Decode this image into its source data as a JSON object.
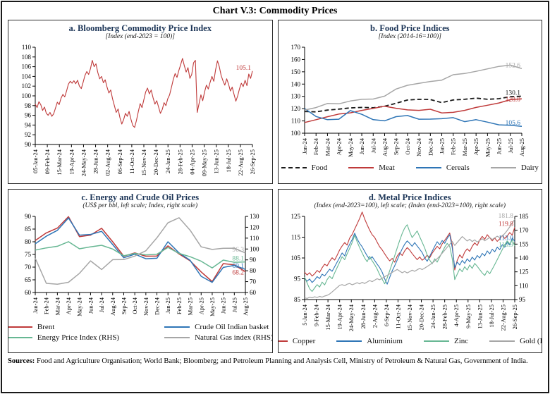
{
  "title": "Chart V.3: Commodity Prices",
  "sources": {
    "label": "Sources:",
    "text": " Food and Agriculture Organisation; World Bank; Bloomberg; and Petroleum Planning and Analysis Cell, Ministry of Petroleum & Natural Gas, Government of India."
  },
  "colors": {
    "red": "#bf3a3a",
    "blue": "#2e75b6",
    "green": "#67b793",
    "gray": "#a6a6a6",
    "black": "#1a1a1a"
  },
  "chart_data": [
    {
      "type": "line",
      "title": "a. Bloomberg Commodity Price Index",
      "subtitle": "[Index (end-2023 = 100)]",
      "left_axis": {
        "min": 90,
        "max": 110,
        "step": 2
      },
      "right_axis": null,
      "x_label_space": 52,
      "x_labels": [
        "05-Jan-24",
        "09-Feb-24",
        "15-Mar-24",
        "19-Apr-24",
        "24-May-24",
        "28-Jun-24",
        "02-Aug-24",
        "06-Sep-24",
        "11-Oct-24",
        "15-Nov-24",
        "20-Dec-24",
        "24-Jan-25",
        "28-Feb-25",
        "04-Apr-25",
        "09-May-25",
        "13-Jun-25",
        "18-Jul-25",
        "22-Aug-25",
        "26-Sep-25"
      ],
      "legend": false,
      "series": [
        {
          "name": "Bloomberg Commodity Price Index",
          "color": "#bf3a3a",
          "axis": "left",
          "width": 1.1,
          "end_label": "105.1",
          "values": [
            98.3,
            97.6,
            98.8,
            98.2,
            97.0,
            97.7,
            96.4,
            96.0,
            96.6,
            95.8,
            96.3,
            97.5,
            98.7,
            98.2,
            99.5,
            100.3,
            99.8,
            101.0,
            102.4,
            103.0,
            102.6,
            103.1,
            102.5,
            103.2,
            102.0,
            101.5,
            102.8,
            104.2,
            105.0,
            104.4,
            105.6,
            107.3,
            106.0,
            106.6,
            104.8,
            103.5,
            104.0,
            102.7,
            103.3,
            101.8,
            100.6,
            101.2,
            99.4,
            98.0,
            96.6,
            97.3,
            95.5,
            94.2,
            95.1,
            96.4,
            95.8,
            96.8,
            95.2,
            93.9,
            93.5,
            95.0,
            96.8,
            98.4,
            97.6,
            99.2,
            100.8,
            101.6,
            100.4,
            101.2,
            99.6,
            98.3,
            99.0,
            97.7,
            96.4,
            97.2,
            98.6,
            98.0,
            99.4,
            100.2,
            101.8,
            103.4,
            104.6,
            103.8,
            105.2,
            106.4,
            107.7,
            106.2,
            104.9,
            105.8,
            103.6,
            104.4,
            106.8,
            107.3,
            96.6,
            98.4,
            100.2,
            99.0,
            100.8,
            102.2,
            101.4,
            102.8,
            104.0,
            103.0,
            105.4,
            107.2,
            106.0,
            104.2,
            103.1,
            102.2,
            103.5,
            102.4,
            101.0,
            101.8,
            100.3,
            98.9,
            100.0,
            101.5,
            102.6,
            101.9,
            103.2,
            102.1,
            104.5,
            103.6,
            105.1
          ]
        }
      ]
    },
    {
      "type": "line",
      "title": "b. Food Price Indices",
      "subtitle": "[Index (2014-16=100)]",
      "left_axis": {
        "min": 100,
        "max": 170,
        "step": 10
      },
      "right_axis": null,
      "x_label_space": 42,
      "x_labels": [
        "Jan-24",
        "Feb-24",
        "Mar-24",
        "Apr-24",
        "May-24",
        "Jun-24",
        "Jul-24",
        "Aug-24",
        "Sep-24",
        "Oct-24",
        "Nov-24",
        "Dec-24",
        "Jan-25",
        "Feb-25",
        "Mar-25",
        "Apr-25",
        "May-25",
        "Jun-25",
        "Jul-25",
        "Aug-25"
      ],
      "legend": true,
      "series": [
        {
          "name": "Food",
          "color": "#1a1a1a",
          "axis": "left",
          "width": 1.8,
          "dash": "6,3.5",
          "end_label": "130.1",
          "values": [
            117.7,
            117.4,
            118.8,
            119.6,
            120.6,
            121.0,
            120.7,
            121.9,
            124.4,
            127.0,
            127.6,
            127.4,
            124.9,
            127.1,
            127.6,
            128.6,
            127.6,
            128.1,
            129.7,
            130.1
          ]
        },
        {
          "name": "Meat",
          "color": "#bf3a3a",
          "axis": "left",
          "width": 1.5,
          "end_label": "128.0",
          "values": [
            108.7,
            111.0,
            113.4,
            115.6,
            116.6,
            118.6,
            120.2,
            122.0,
            120.3,
            119.0,
            118.6,
            119.5,
            116.5,
            117.0,
            118.6,
            121.0,
            122.8,
            124.6,
            127.3,
            128.0
          ]
        },
        {
          "name": "Cereals",
          "color": "#2e75b6",
          "axis": "left",
          "width": 1.5,
          "end_label": "105.6",
          "values": [
            120.1,
            113.6,
            111.0,
            111.4,
            118.4,
            115.4,
            111.0,
            110.1,
            113.5,
            114.4,
            111.4,
            111.5,
            111.8,
            112.7,
            109.4,
            111.0,
            109.0,
            106.8,
            106.4,
            105.6
          ]
        },
        {
          "name": "Dairy",
          "color": "#a6a6a6",
          "axis": "left",
          "width": 1.5,
          "end_label": "152.6",
          "values": [
            118.9,
            120.9,
            124.2,
            123.9,
            126.2,
            127.6,
            127.8,
            130.2,
            136.0,
            139.0,
            140.6,
            142.1,
            143.2,
            147.6,
            148.6,
            150.4,
            152.4,
            154.4,
            155.4,
            152.6
          ]
        }
      ]
    },
    {
      "type": "line",
      "title": "c. Energy and Crude Oil Prices",
      "subtitle": "(US$ per bbl, left scale; Index, right scale)",
      "left_axis": {
        "min": 60,
        "max": 90,
        "step": 5
      },
      "right_axis": {
        "min": 60,
        "max": 130,
        "step": 10
      },
      "x_label_space": 42,
      "x_labels": [
        "Jan-24",
        "Feb-24",
        "Mar-24",
        "Apr-24",
        "May-24",
        "Jun-24",
        "Jul-24",
        "Aug-24",
        "Sep-24",
        "Oct-24",
        "Nov-24",
        "Dec-24",
        "Jan-25",
        "Feb-25",
        "Mar-25",
        "Apr-25",
        "May-25",
        "Jun-25",
        "Jul-25",
        "Aug-25"
      ],
      "legend": true,
      "legend_two_col": true,
      "series": [
        {
          "name": "Brent",
          "color": "#bf3a3a",
          "axis": "left",
          "width": 1.5,
          "end_label": "68.2",
          "values": [
            80.5,
            83.5,
            85.4,
            89.9,
            82.0,
            82.6,
            85.3,
            80.0,
            74.3,
            75.6,
            74.3,
            74.4,
            78.4,
            75.2,
            72.5,
            68.1,
            64.3,
            71.4,
            70.9,
            68.2
          ]
        },
        {
          "name": "Crude Oil Indian basket",
          "color": "#2e75b6",
          "axis": "left",
          "width": 1.5,
          "end_label": "69.1",
          "values": [
            79.2,
            82.2,
            84.5,
            89.4,
            82.6,
            82.9,
            84.1,
            78.9,
            73.7,
            75.1,
            73.3,
            73.5,
            80.0,
            75.6,
            72.7,
            66.4,
            64.0,
            69.9,
            70.7,
            69.1
          ]
        },
        {
          "name": "Energy Price Index (RHS)",
          "color": "#67b793",
          "axis": "right",
          "width": 1.5,
          "end_label": "88.1",
          "values": [
            99.0,
            101.0,
            102.5,
            106.7,
            100.2,
            102.0,
            103.4,
            100.0,
            93.8,
            95.9,
            94.6,
            95.2,
            101.4,
            96.0,
            92.9,
            88.8,
            82.6,
            89.8,
            87.8,
            88.1
          ]
        },
        {
          "name": "Natural Gas index (RHS)",
          "color": "#a6a6a6",
          "axis": "right",
          "width": 1.5,
          "end_label": "96.3",
          "values": [
            91.5,
            68.4,
            67.6,
            69.4,
            77.6,
            89.1,
            81.1,
            90.2,
            90.3,
            93.5,
            98.4,
            110.3,
            124.1,
            128.8,
            117.3,
            102.0,
            99.6,
            100.7,
            100.8,
            96.3
          ]
        }
      ]
    },
    {
      "type": "line",
      "title": "d. Metal Price Indices",
      "subtitle": "(Index (end-2023=100), left scale; (Index (end-2023=100), right scale)",
      "left_axis": {
        "min": 85,
        "max": 125,
        "step": 10
      },
      "right_axis": {
        "min": 95,
        "max": 185,
        "step": 15
      },
      "x_label_space": 52,
      "x_labels": [
        "5-Jan-24",
        "9-Feb-24",
        "15-Mar-24",
        "19-Apr-24",
        "24-May-24",
        "28-Jun-24",
        "2-Aug-24",
        "6-Sep-24",
        "11-Oct-24",
        "15-Nov-24",
        "20-Dec-24",
        "24-Jan-25",
        "28-Feb-25",
        "4-Apr-25",
        "9-May-25",
        "13-Jun-25",
        "18-Jul-25",
        "22-Aug-25",
        "26-Sep-25"
      ],
      "legend": true,
      "series": [
        {
          "name": "Copper",
          "color": "#bf3a3a",
          "axis": "left",
          "width": 1.1,
          "end_label": "119.8",
          "values": [
            98.2,
            96.8,
            97.9,
            96.3,
            97.4,
            99.0,
            98.1,
            100.3,
            102.0,
            101.2,
            103.4,
            105.1,
            104.0,
            106.3,
            108.9,
            110.8,
            112.4,
            111.2,
            114.6,
            116.3,
            118.9,
            121.4,
            124.0,
            127.1,
            123.8,
            121.0,
            118.4,
            116.2,
            114.9,
            112.6,
            110.4,
            108.9,
            107.0,
            105.2,
            103.6,
            104.8,
            103.0,
            105.9,
            107.5,
            106.2,
            108.4,
            110.0,
            108.8,
            107.1,
            105.6,
            104.2,
            105.5,
            103.9,
            104.8,
            106.4,
            105.1,
            107.3,
            109.0,
            110.6,
            109.4,
            111.8,
            113.5,
            115.2,
            117.0,
            111.5,
            99.2,
            103.8,
            106.5,
            105.0,
            107.8,
            109.4,
            108.2,
            110.6,
            112.3,
            111.0,
            113.6,
            115.4,
            114.0,
            116.2,
            114.8,
            113.2,
            114.6,
            113.0,
            114.2,
            115.8,
            114.4,
            115.6,
            117.2,
            116.0,
            119.8
          ]
        },
        {
          "name": "Aluminium",
          "color": "#2e75b6",
          "axis": "left",
          "width": 1.1,
          "end_label": "113.0",
          "values": [
            95.3,
            93.8,
            94.9,
            93.2,
            94.4,
            96.0,
            95.1,
            97.2,
            96.4,
            98.0,
            99.6,
            98.6,
            100.8,
            103.0,
            105.2,
            107.4,
            106.0,
            109.2,
            111.6,
            113.8,
            116.9,
            114.2,
            112.0,
            110.4,
            108.2,
            106.0,
            104.4,
            105.6,
            103.8,
            102.0,
            100.4,
            98.2,
            95.0,
            92.4,
            95.6,
            98.8,
            101.2,
            104.0,
            106.8,
            109.4,
            111.6,
            113.2,
            112.0,
            110.6,
            112.4,
            110.8,
            109.2,
            107.6,
            105.0,
            103.4,
            105.8,
            108.2,
            110.6,
            112.8,
            111.4,
            113.4,
            112.0,
            114.4,
            116.2,
            110.0,
            100.4,
            103.0,
            101.6,
            103.8,
            102.4,
            104.6,
            103.2,
            105.4,
            104.0,
            106.2,
            105.0,
            107.2,
            106.0,
            108.4,
            107.0,
            109.2,
            108.0,
            110.2,
            109.0,
            111.4,
            110.2,
            112.6,
            111.2,
            114.6,
            113.0
          ]
        },
        {
          "name": "Zinc",
          "color": "#67b793",
          "axis": "left",
          "width": 1.1,
          "end_label": "110.9",
          "values": [
            95.8,
            93.0,
            90.2,
            88.9,
            90.6,
            92.2,
            91.0,
            93.4,
            92.0,
            94.6,
            96.2,
            95.0,
            97.8,
            100.4,
            103.0,
            105.6,
            104.2,
            107.0,
            109.6,
            112.4,
            115.9,
            112.8,
            110.0,
            107.4,
            105.0,
            103.2,
            105.8,
            103.6,
            101.8,
            99.6,
            97.0,
            94.8,
            92.6,
            95.4,
            98.8,
            102.4,
            106.0,
            109.8,
            113.4,
            116.8,
            119.4,
            121.0,
            117.6,
            114.8,
            116.4,
            118.0,
            115.2,
            112.6,
            109.8,
            106.4,
            104.0,
            102.2,
            104.6,
            103.0,
            105.4,
            107.8,
            110.2,
            112.0,
            110.6,
            104.8,
            94.6,
            97.2,
            99.8,
            98.4,
            100.8,
            99.2,
            101.6,
            100.0,
            102.4,
            101.0,
            99.4,
            97.8,
            96.6,
            98.8,
            97.4,
            99.6,
            101.8,
            104.2,
            106.6,
            109.0,
            111.4,
            113.2,
            111.8,
            113.6,
            110.9
          ]
        },
        {
          "name": "Gold (RHS)",
          "color": "#a6a6a6",
          "axis": "right",
          "width": 1.2,
          "end_label": "181.8",
          "values": [
            97.0,
            96.2,
            97.5,
            96.8,
            98.0,
            97.2,
            98.4,
            97.6,
            98.8,
            99.6,
            101.0,
            103.2,
            105.6,
            108.0,
            110.4,
            111.2,
            110.0,
            111.6,
            112.4,
            111.0,
            112.0,
            113.2,
            112.0,
            113.6,
            112.4,
            114.0,
            115.6,
            114.4,
            116.0,
            117.6,
            116.4,
            118.0,
            119.6,
            121.2,
            122.8,
            124.4,
            126.0,
            127.6,
            125.8,
            124.0,
            125.4,
            123.8,
            125.2,
            126.8,
            125.6,
            127.2,
            128.8,
            127.4,
            129.0,
            130.8,
            132.6,
            134.4,
            136.8,
            139.2,
            142.0,
            145.2,
            148.4,
            151.6,
            154.8,
            158.0,
            153.6,
            156.8,
            160.0,
            163.2,
            160.8,
            158.4,
            160.2,
            157.8,
            159.6,
            157.2,
            159.0,
            160.8,
            158.6,
            160.4,
            162.2,
            160.0,
            161.8,
            163.6,
            162.0,
            164.0,
            166.4,
            169.8,
            173.6,
            178.0,
            181.8
          ]
        }
      ]
    }
  ]
}
